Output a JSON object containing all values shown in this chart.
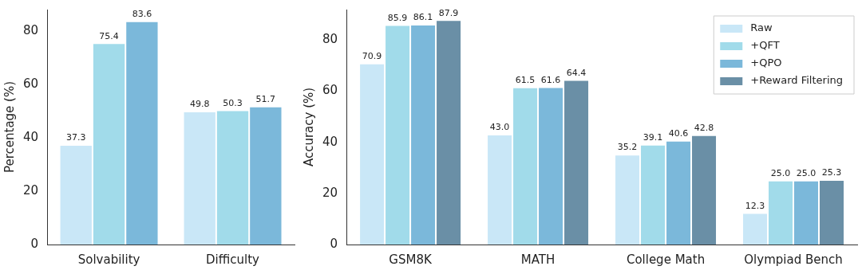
{
  "chart_data": [
    {
      "type": "bar",
      "ylabel": "Percentage (%)",
      "categories": [
        "Solvability",
        "Difficulty"
      ],
      "series": [
        {
          "color": "#c9e7f7",
          "values": [
            37.3,
            49.8
          ],
          "value_labels": [
            "37.3",
            "49.8"
          ]
        },
        {
          "color": "#a1dbea",
          "values": [
            75.4,
            50.3
          ],
          "value_labels": [
            "75.4",
            "50.3"
          ]
        },
        {
          "color": "#7bb8da",
          "values": [
            83.6,
            51.7
          ],
          "value_labels": [
            "83.6",
            "51.7"
          ]
        }
      ],
      "ylim": [
        0,
        88
      ],
      "yticks": [
        0,
        20,
        40,
        60,
        80
      ],
      "grid": false,
      "legend": false
    },
    {
      "type": "bar",
      "ylabel": "Accuracy (%)",
      "categories": [
        "GSM8K",
        "MATH",
        "College Math",
        "Olympiad Bench"
      ],
      "series": [
        {
          "name": "Raw",
          "color": "#c9e7f7",
          "values": [
            70.9,
            43.0,
            35.2,
            12.3
          ],
          "value_labels": [
            "70.9",
            "43.0",
            "35.2",
            "12.3"
          ]
        },
        {
          "name": "+QFT",
          "color": "#a1dbea",
          "values": [
            85.9,
            61.5,
            39.1,
            25.0
          ],
          "value_labels": [
            "85.9",
            "61.5",
            "39.1",
            "25.0"
          ]
        },
        {
          "name": "+QPO",
          "color": "#7bb8da",
          "values": [
            86.1,
            61.6,
            40.6,
            25.0
          ],
          "value_labels": [
            "86.1",
            "61.6",
            "40.6",
            "25.0"
          ]
        },
        {
          "name": "+Reward Filtering",
          "color": "#6a8fa6",
          "values": [
            87.9,
            64.4,
            42.8,
            25.3
          ],
          "value_labels": [
            "87.9",
            "64.4",
            "42.8",
            "25.3"
          ]
        }
      ],
      "ylim": [
        0,
        92
      ],
      "yticks": [
        0,
        20,
        40,
        60,
        80
      ],
      "grid": false,
      "legend": "top right"
    }
  ]
}
